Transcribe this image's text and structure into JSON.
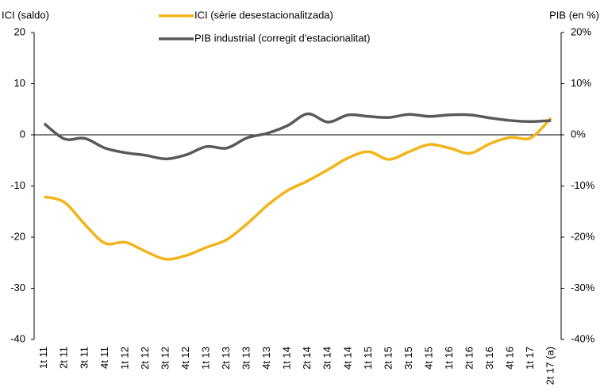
{
  "chart_data": {
    "type": "line",
    "y_label": "ICI (saldo)",
    "y2_label": "PIB (en %)",
    "categories": [
      "1t 11",
      "2t 11",
      "3t 11",
      "4t 11",
      "1t 12",
      "2t 12",
      "3t 12",
      "4t 12",
      "1t 13",
      "2t 13",
      "3t 13",
      "4t 13",
      "1t 14",
      "2t 14",
      "3t 14",
      "4t 14",
      "1t 15",
      "2t 15",
      "3t 15",
      "4t 15",
      "1t 16",
      "2t 16",
      "3t 16",
      "4t 16",
      "1t 17",
      "2t 17 (a)"
    ],
    "series": [
      {
        "name": "ICI (sèrie desestacionalitzada)",
        "color": "#f2b418",
        "axis": "y",
        "values": [
          -12.1,
          -13.2,
          -17.5,
          -21.2,
          -21,
          -22.8,
          -24.3,
          -23.6,
          -22,
          -20.5,
          -17.4,
          -13.8,
          -10.9,
          -9,
          -6.8,
          -4.5,
          -3.3,
          -4.8,
          -3.3,
          -1.9,
          -2.6,
          -3.6,
          -1.7,
          -0.5,
          -0.6,
          3.3
        ]
      },
      {
        "name": "PIB industrial (corregit d'estacionalitat)",
        "color": "#595959",
        "axis": "y2",
        "values": [
          2.2,
          -0.8,
          -0.7,
          -2.6,
          -3.5,
          -4,
          -4.7,
          -3.9,
          -2.3,
          -2.6,
          -0.6,
          0.3,
          1.8,
          4.1,
          2.5,
          3.9,
          3.6,
          3.4,
          4,
          3.6,
          3.9,
          3.9,
          3.3,
          2.8,
          2.6,
          2.8
        ]
      }
    ],
    "ylim": [
      -40,
      20
    ],
    "yticks": [
      20,
      10,
      0,
      -10,
      -20,
      -30,
      -40
    ],
    "y2lim": [
      -40,
      20
    ],
    "y2ticks": [
      {
        "value": 20,
        "label": "20%"
      },
      {
        "value": 10,
        "label": "10%"
      },
      {
        "value": 0,
        "label": "0%"
      },
      {
        "value": -10,
        "label": "-10%"
      },
      {
        "value": -20,
        "label": "-20%"
      },
      {
        "value": -30,
        "label": "-30%"
      },
      {
        "value": -40,
        "label": "-40%"
      }
    ],
    "legend": "top"
  }
}
